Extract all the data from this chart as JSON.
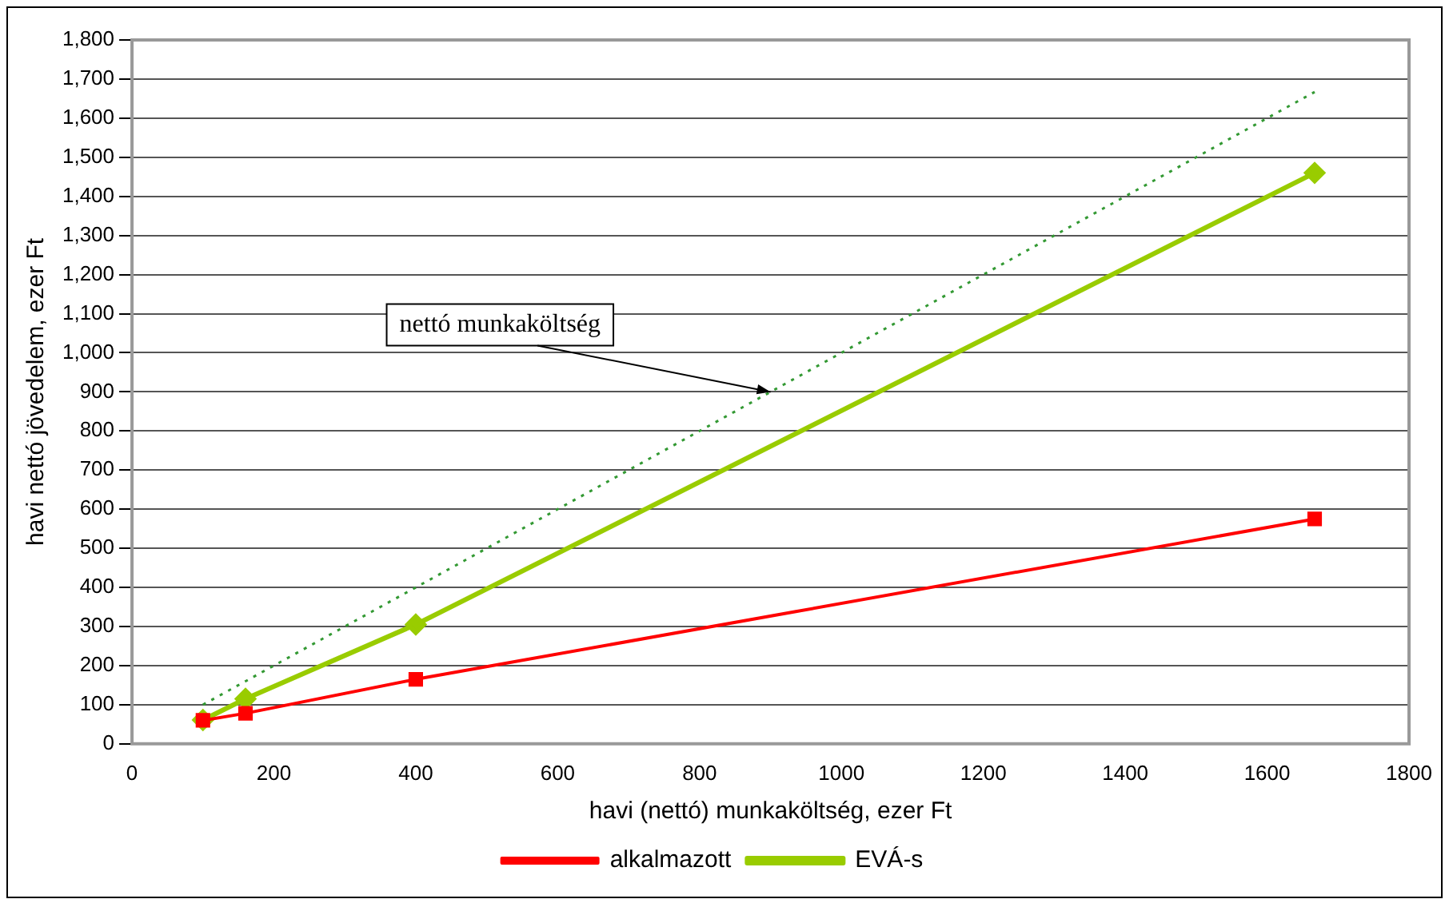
{
  "chart_data": {
    "type": "line",
    "xlabel": "havi (nettó) munkaköltség, ezer Ft",
    "ylabel": "havi nettó jövedelem, ezer Ft",
    "x": [
      100,
      160,
      400,
      1667
    ],
    "series": [
      {
        "name": "EVÁ-s",
        "color": "#99cc00",
        "values": [
          61,
          115,
          305,
          1460
        ],
        "marker": "diamond",
        "line_style": "solid"
      },
      {
        "name": "alkalmazott",
        "color": "#ff0000",
        "values": [
          60,
          78,
          165,
          575
        ],
        "marker": "square",
        "line_style": "solid"
      },
      {
        "color": "#339933",
        "values": [
          100,
          160,
          400,
          1667
        ],
        "marker": "none",
        "line_style": "dotted"
      }
    ],
    "xlim": [
      0,
      1800
    ],
    "xticks": [
      0,
      200,
      400,
      600,
      800,
      1000,
      1200,
      1400,
      1600,
      1800
    ],
    "ylim": [
      0,
      1800
    ],
    "yticks": [
      0,
      {
        "value": 100,
        "label": "100"
      },
      {
        "value": 200,
        "label": "200"
      },
      {
        "value": 300,
        "label": "300"
      },
      {
        "value": 400,
        "label": "400"
      },
      {
        "value": 500,
        "label": "500"
      },
      {
        "value": 600,
        "label": "600"
      },
      {
        "value": 700,
        "label": "700"
      },
      {
        "value": 800,
        "label": "800"
      },
      {
        "value": 900,
        "label": "900"
      },
      {
        "value": 1000,
        "label": "1,000"
      },
      {
        "value": 1100,
        "label": "1,100"
      },
      {
        "value": 1200,
        "label": "1,200"
      },
      {
        "value": 1300,
        "label": "1,300"
      },
      {
        "value": 1400,
        "label": "1,400"
      },
      {
        "value": 1500,
        "label": "1,500"
      },
      {
        "value": 1600,
        "label": "1,600"
      },
      {
        "value": 1700,
        "label": "1,700"
      },
      {
        "value": 1800,
        "label": "1,800"
      }
    ],
    "grid": "y",
    "legend": "bottom",
    "annotations": [
      {
        "text": "nettó munkaköltség",
        "x": 900,
        "y": 900
      }
    ]
  }
}
